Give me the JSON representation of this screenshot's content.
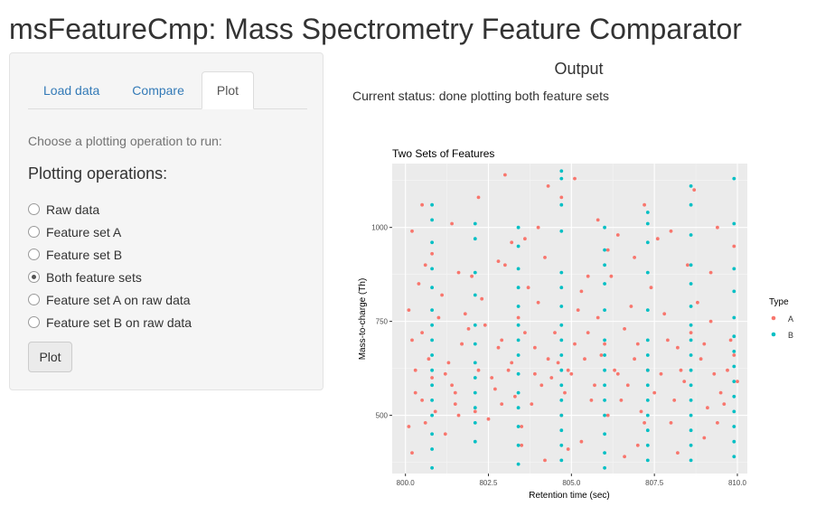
{
  "app": {
    "title": "msFeatureCmp: Mass Spectrometry Feature Comparator"
  },
  "sidebar": {
    "tabs": [
      {
        "label": "Load data",
        "active": false
      },
      {
        "label": "Compare",
        "active": false
      },
      {
        "label": "Plot",
        "active": true
      }
    ],
    "instruction": "Choose a plotting operation to run:",
    "operations_heading": "Plotting operations:",
    "operations": [
      {
        "label": "Raw data",
        "checked": false
      },
      {
        "label": "Feature set A",
        "checked": false
      },
      {
        "label": "Feature set B",
        "checked": false
      },
      {
        "label": "Both feature sets",
        "checked": true
      },
      {
        "label": "Feature set A on raw data",
        "checked": false
      },
      {
        "label": "Feature set B on raw data",
        "checked": false
      }
    ],
    "plot_button_label": "Plot"
  },
  "main": {
    "output_heading": "Output",
    "status": "Current status: done plotting both feature sets"
  },
  "chart_data": {
    "type": "scatter",
    "title": "Two Sets of Features",
    "xlabel": "Retention time (sec)",
    "ylabel": "Mass-to-charge (Th)",
    "xlim": [
      799.6,
      810.3
    ],
    "ylim": [
      345,
      1170
    ],
    "x_ticks": [
      800.0,
      802.5,
      805.0,
      807.5,
      810.0
    ],
    "x_tick_labels": [
      "800.0",
      "802.5",
      "805.0",
      "807.5",
      "810.0"
    ],
    "y_ticks": [
      500,
      750,
      1000
    ],
    "y_tick_labels": [
      "500",
      "750",
      "1000"
    ],
    "grid": true,
    "legend": {
      "title": "Type",
      "position": "right"
    },
    "series": [
      {
        "name": "A",
        "color": "#F8766D",
        "x": [
          800.1,
          800.3,
          800.5,
          800.2,
          800.6,
          800.4,
          800.8,
          800.2,
          800.5,
          800.9,
          800.3,
          800.7,
          800.1,
          800.6,
          801.0,
          801.2,
          801.5,
          801.1,
          801.7,
          801.4,
          801.9,
          801.3,
          801.6,
          802.0,
          801.2,
          801.8,
          802.2,
          801.5,
          801.7,
          802.1,
          802.3,
          802.6,
          802.9,
          802.4,
          802.8,
          803.0,
          802.7,
          803.2,
          802.5,
          803.4,
          803.1,
          802.9,
          803.3,
          803.7,
          803.9,
          804.1,
          803.6,
          804.3,
          803.8,
          804.0,
          804.4,
          803.5,
          804.2,
          803.9,
          804.6,
          804.8,
          804.5,
          805.0,
          805.2,
          804.7,
          805.4,
          805.1,
          805.6,
          805.3,
          804.9,
          805.5,
          805.7,
          805.9,
          806.1,
          805.8,
          806.3,
          806.0,
          806.5,
          806.2,
          806.4,
          806.7,
          806.6,
          806.9,
          807.1,
          806.8,
          807.3,
          807.0,
          807.5,
          807.2,
          807.4,
          807.7,
          807.9,
          808.1,
          807.8,
          808.3,
          808.0,
          808.2,
          808.4,
          808.6,
          808.9,
          809.1,
          808.8,
          809.3,
          809.0,
          809.5,
          809.2,
          809.7,
          809.4,
          809.8,
          810.0,
          809.6,
          809.9,
          800.5,
          801.4,
          802.2,
          803.0,
          803.6,
          804.3,
          805.1,
          805.8,
          806.4,
          807.2,
          808.0,
          808.7,
          809.4,
          800.8,
          801.6,
          802.8,
          803.2,
          804.0,
          804.7,
          805.5,
          806.1,
          806.9,
          807.6,
          808.5,
          809.2,
          809.9,
          800.2,
          803.5,
          804.2,
          804.9,
          805.3,
          806.6,
          807.0,
          808.2,
          809.0
        ],
        "y": [
          780,
          620,
          540,
          700,
          480,
          850,
          600,
          990,
          720,
          510,
          560,
          650,
          470,
          900,
          760,
          610,
          530,
          820,
          690,
          580,
          730,
          640,
          500,
          870,
          450,
          770,
          620,
          560,
          690,
          510,
          810,
          600,
          530,
          740,
          680,
          900,
          570,
          640,
          490,
          760,
          620,
          700,
          550,
          840,
          610,
          580,
          720,
          650,
          530,
          800,
          600,
          470,
          920,
          680,
          640,
          560,
          720,
          610,
          780,
          500,
          650,
          690,
          540,
          830,
          620,
          720,
          580,
          660,
          500,
          760,
          620,
          690,
          540,
          870,
          610,
          580,
          730,
          650,
          510,
          790,
          620,
          690,
          560,
          480,
          840,
          610,
          700,
          540,
          770,
          620,
          480,
          680,
          590,
          720,
          650,
          520,
          800,
          610,
          690,
          560,
          750,
          620,
          480,
          700,
          590,
          530,
          660,
          1060,
          1010,
          1080,
          1140,
          970,
          1110,
          1130,
          1020,
          980,
          1060,
          990,
          1100,
          1000,
          930,
          880,
          910,
          960,
          1000,
          1080,
          870,
          940,
          920,
          970,
          900,
          880,
          950,
          400,
          420,
          380,
          410,
          430,
          390,
          420,
          400,
          440
        ],
        "note": "representative sample of the scattered feature set A points"
      },
      {
        "name": "B",
        "color": "#00BFC4",
        "x": [
          800.8,
          800.8,
          800.8,
          800.8,
          800.8,
          800.8,
          800.8,
          800.8,
          800.8,
          800.8,
          800.8,
          800.8,
          800.8,
          800.8,
          800.8,
          800.8,
          802.1,
          802.1,
          802.1,
          802.1,
          802.1,
          802.1,
          802.1,
          802.1,
          802.1,
          802.1,
          802.1,
          802.1,
          803.4,
          803.4,
          803.4,
          803.4,
          803.4,
          803.4,
          803.4,
          803.4,
          803.4,
          803.4,
          803.4,
          803.4,
          803.4,
          803.4,
          804.7,
          804.7,
          804.7,
          804.7,
          804.7,
          804.7,
          804.7,
          804.7,
          804.7,
          804.7,
          804.7,
          804.7,
          804.7,
          804.7,
          804.7,
          804.7,
          804.7,
          806.0,
          806.0,
          806.0,
          806.0,
          806.0,
          806.0,
          806.0,
          806.0,
          806.0,
          806.0,
          806.0,
          806.0,
          806.0,
          806.0,
          807.3,
          807.3,
          807.3,
          807.3,
          807.3,
          807.3,
          807.3,
          807.3,
          807.3,
          807.3,
          807.3,
          807.3,
          807.3,
          807.3,
          808.6,
          808.6,
          808.6,
          808.6,
          808.6,
          808.6,
          808.6,
          808.6,
          808.6,
          808.6,
          808.6,
          808.6,
          808.6,
          808.6,
          808.6,
          808.6,
          809.9,
          809.9,
          809.9,
          809.9,
          809.9,
          809.9,
          809.9,
          809.9,
          809.9,
          809.9,
          809.9,
          809.9,
          809.9,
          809.9
        ],
        "y": [
          360,
          410,
          450,
          500,
          540,
          580,
          620,
          660,
          700,
          740,
          780,
          840,
          890,
          960,
          1020,
          1060,
          430,
          480,
          520,
          560,
          600,
          640,
          690,
          740,
          820,
          880,
          970,
          1010,
          370,
          420,
          470,
          520,
          560,
          610,
          660,
          700,
          740,
          790,
          840,
          890,
          950,
          1000,
          380,
          420,
          460,
          500,
          540,
          580,
          620,
          660,
          700,
          740,
          790,
          840,
          880,
          990,
          1060,
          1130,
          1150,
          360,
          400,
          450,
          500,
          540,
          580,
          620,
          660,
          700,
          780,
          850,
          900,
          940,
          1000,
          380,
          420,
          460,
          500,
          540,
          580,
          620,
          660,
          700,
          780,
          880,
          960,
          1010,
          1040,
          380,
          420,
          460,
          500,
          540,
          580,
          620,
          660,
          700,
          740,
          790,
          850,
          900,
          980,
          1060,
          1110,
          390,
          430,
          470,
          510,
          550,
          590,
          630,
          670,
          710,
          760,
          830,
          890,
          1010,
          1130
        ],
        "note": "feature set B points cluster in vertical bands at fixed retention times"
      }
    ]
  }
}
